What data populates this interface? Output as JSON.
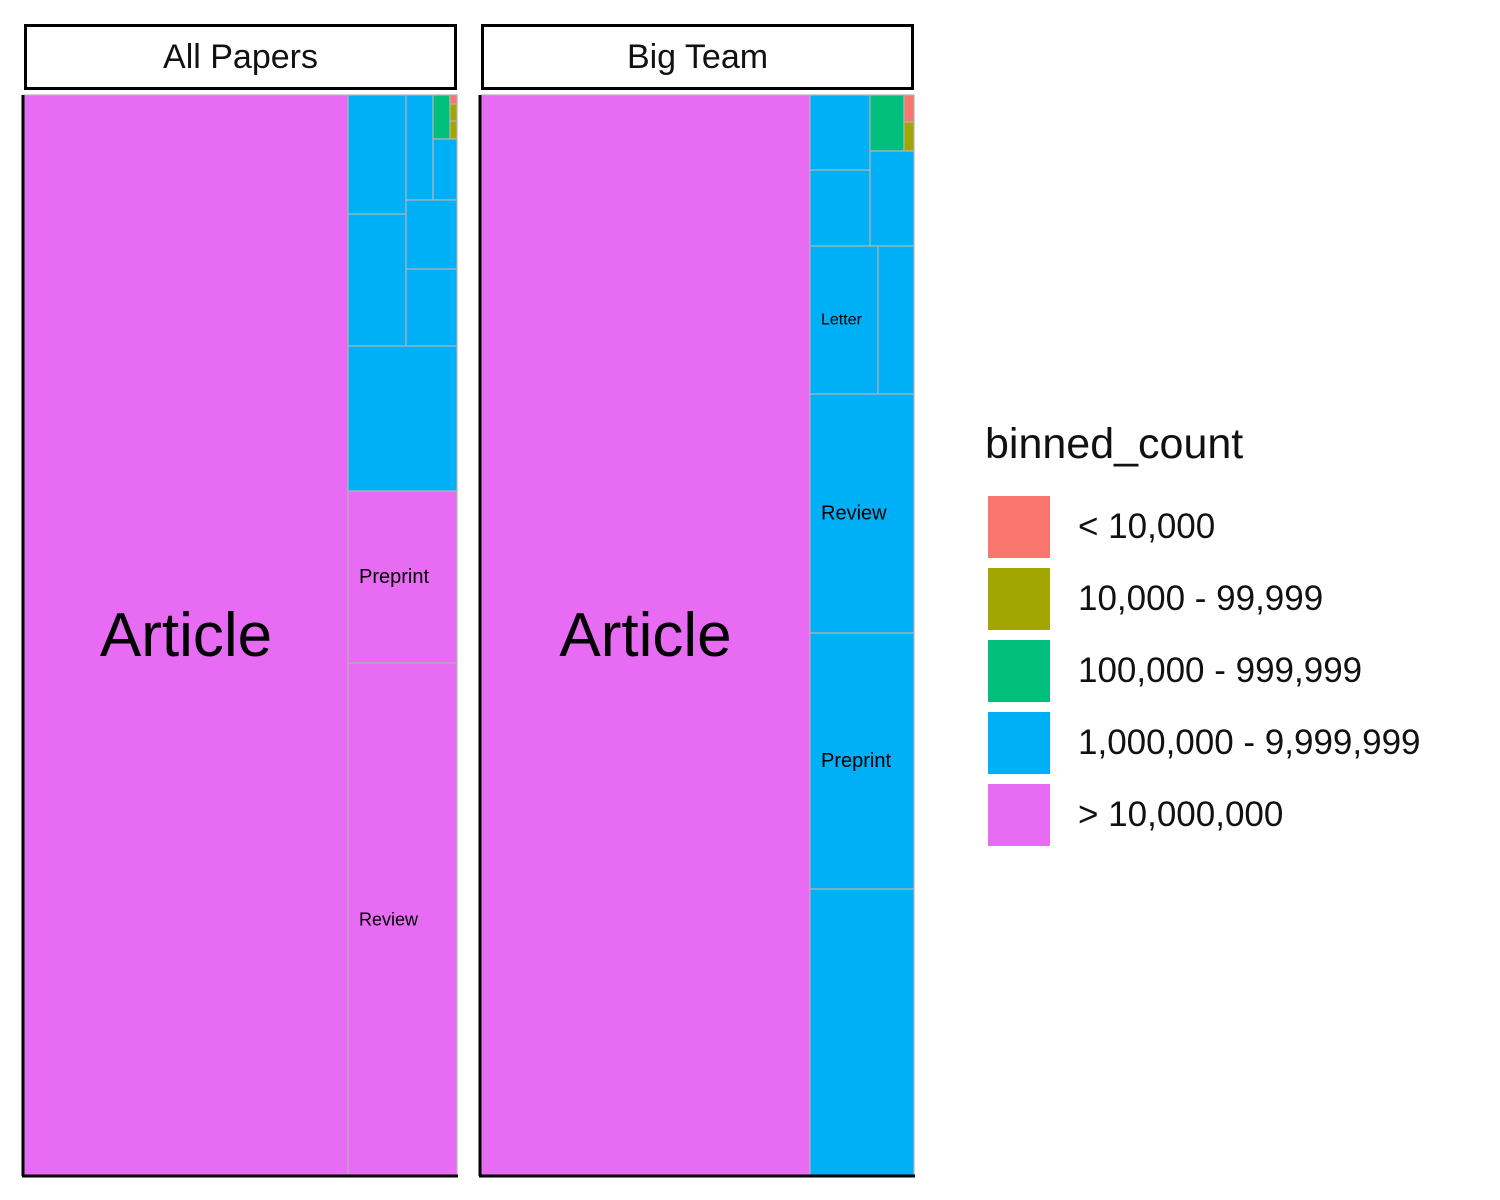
{
  "chart_data": {
    "type": "treemap",
    "legend": {
      "title": "binned_count",
      "position": "right",
      "items": [
        {
          "label": "< 10,000",
          "color": "#F8766D"
        },
        {
          "label": "10,000 - 99,999",
          "color": "#A3A500"
        },
        {
          "label": "100,000 - 999,999",
          "color": "#00BF7D"
        },
        {
          "label": "1,000,000 - 9,999,999",
          "color": "#00B0F6"
        },
        {
          "label": "> 10,000,000",
          "color": "#E76BF3"
        }
      ]
    },
    "panels": [
      {
        "title": "All Papers",
        "tiles": [
          {
            "label": "Article",
            "bin": 4
          },
          {
            "label": "",
            "bin": 3
          },
          {
            "label": "",
            "bin": 3
          },
          {
            "label": "",
            "bin": 3
          },
          {
            "label": "",
            "bin": 2
          },
          {
            "label": "",
            "bin": 1
          },
          {
            "label": "",
            "bin": 1
          },
          {
            "label": "",
            "bin": 0
          },
          {
            "label": "",
            "bin": 3
          },
          {
            "label": "",
            "bin": 3
          },
          {
            "label": "",
            "bin": 3
          },
          {
            "label": "",
            "bin": 3
          },
          {
            "label": "Preprint",
            "bin": 4
          },
          {
            "label": "Review",
            "bin": 4
          },
          {
            "label": "",
            "bin": 4
          }
        ]
      },
      {
        "title": "Big Team",
        "tiles": [
          {
            "label": "Article",
            "bin": 4
          },
          {
            "label": "",
            "bin": 3
          },
          {
            "label": "",
            "bin": 2
          },
          {
            "label": "",
            "bin": 0
          },
          {
            "label": "",
            "bin": 1
          },
          {
            "label": "",
            "bin": 3
          },
          {
            "label": "",
            "bin": 3
          },
          {
            "label": "Letter",
            "bin": 3
          },
          {
            "label": "",
            "bin": 3
          },
          {
            "label": "Review",
            "bin": 3
          },
          {
            "label": "Preprint",
            "bin": 3
          },
          {
            "label": "",
            "bin": 3
          }
        ]
      }
    ]
  }
}
